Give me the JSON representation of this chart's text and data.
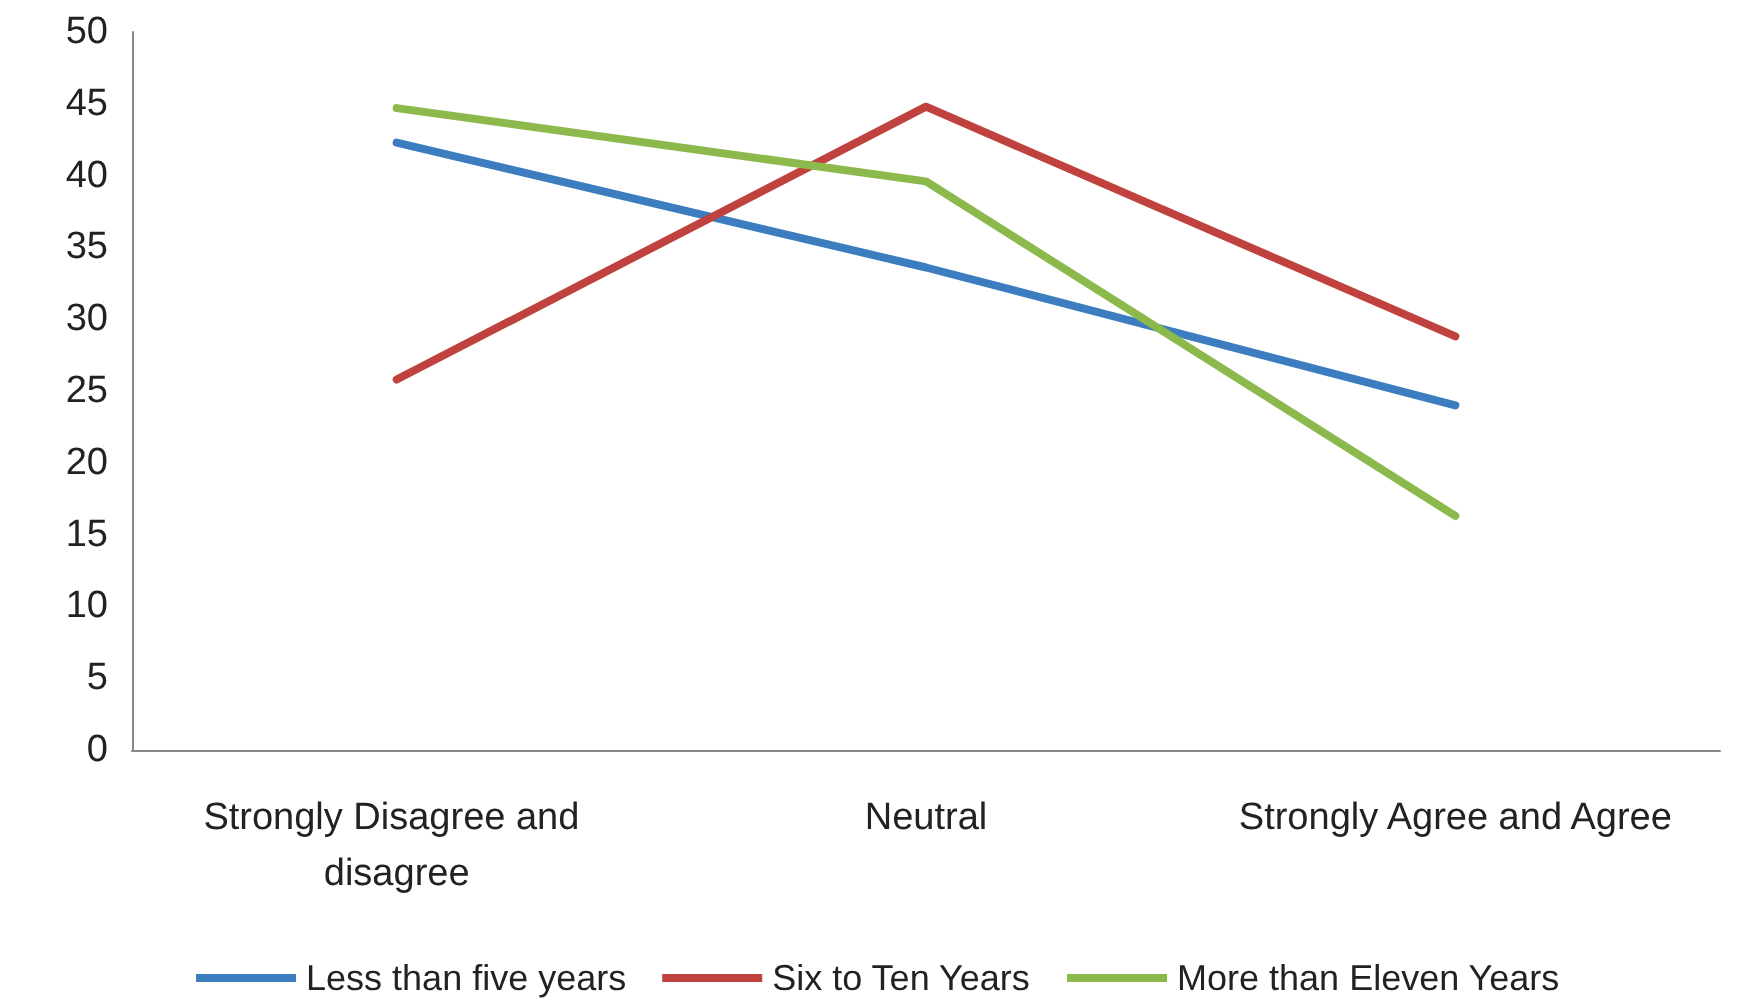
{
  "chart_data": {
    "type": "line",
    "categories": [
      "Strongly Disagree and disagree",
      "Neutral",
      "Strongly Agree and Agree"
    ],
    "series": [
      {
        "name": "Less than five years",
        "color": "#3c7dbf",
        "values": [
          42.3,
          33.6,
          24.0
        ]
      },
      {
        "name": "Six to Ten Years",
        "color": "#c0423f",
        "values": [
          25.8,
          44.8,
          28.8
        ]
      },
      {
        "name": "More than Eleven Years",
        "color": "#8cb94c",
        "values": [
          44.7,
          39.6,
          16.3
        ]
      }
    ],
    "ylim": [
      0,
      50
    ],
    "yticks": [
      0,
      5,
      10,
      15,
      20,
      25,
      30,
      35,
      40,
      45,
      50
    ],
    "grid": false,
    "legend": "bottom",
    "marker": "none",
    "line_style": "solid"
  }
}
